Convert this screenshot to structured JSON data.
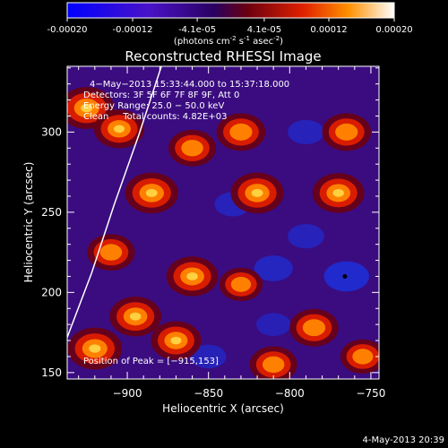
{
  "colorbar": {
    "ticks": [
      "-0.00020",
      "-0.00012",
      "-4.1e-05",
      "4.1e-05",
      "0.00012",
      "0.00020"
    ],
    "tick_values": [
      -0.0002,
      -0.00012,
      -4.1e-05,
      4.1e-05,
      0.00012,
      0.0002
    ],
    "range": [
      -0.0002,
      0.0002
    ],
    "unit_prefix": "(photons cm",
    "unit_exp1": "-2",
    "unit_mid1": " s",
    "unit_exp2": "-1",
    "unit_mid2": " asec",
    "unit_exp3": "-2",
    "unit_suffix": ")"
  },
  "chart_data": {
    "type": "heatmap",
    "title": "Reconstructed RHESSI Image",
    "xlabel": "Heliocentric X (arcsec)",
    "ylabel": "Heliocentric Y (arcsec)",
    "xlim": [
      -937,
      -745
    ],
    "ylim": [
      146,
      341
    ],
    "x_ticks": [
      -900,
      -850,
      -800,
      -750
    ],
    "x_tick_labels": [
      "−900",
      "−850",
      "−800",
      "−750"
    ],
    "y_ticks": [
      150,
      200,
      250,
      300
    ],
    "y_tick_labels": [
      "150",
      "200",
      "250",
      "300"
    ],
    "annotations": [
      "4−May−2013 15:33:44.000 to 15:37:18.000",
      "Detectors: 3F 5F 6F 7F 8F 9F, Att 0",
      "Energy Range: 25.0 − 50.0 keV",
      "Clean     Total counts: 4.82E+03"
    ],
    "peak_label": "Position of Peak = [−915,153]",
    "peak": [
      -915,
      153
    ],
    "dark_dot": [
      -766,
      210
    ],
    "limb_curve": [
      [
        -937,
        172
      ],
      [
        -922,
        212
      ],
      [
        -908,
        255
      ],
      [
        -893,
        298
      ],
      [
        -879,
        341
      ]
    ],
    "hot_regions": [
      {
        "x": -925,
        "y": 315,
        "level": 0.95
      },
      {
        "x": -885,
        "y": 262,
        "level": 0.9
      },
      {
        "x": -905,
        "y": 302,
        "level": 0.8
      },
      {
        "x": -860,
        "y": 290,
        "level": 0.7
      },
      {
        "x": -830,
        "y": 300,
        "level": 0.75
      },
      {
        "x": -820,
        "y": 262,
        "level": 0.9
      },
      {
        "x": -860,
        "y": 210,
        "level": 0.85
      },
      {
        "x": -910,
        "y": 225,
        "level": 0.7
      },
      {
        "x": -895,
        "y": 185,
        "level": 0.85
      },
      {
        "x": -920,
        "y": 165,
        "level": 0.95
      },
      {
        "x": -870,
        "y": 170,
        "level": 0.8
      },
      {
        "x": -810,
        "y": 155,
        "level": 0.7
      },
      {
        "x": -770,
        "y": 262,
        "level": 0.85
      },
      {
        "x": -765,
        "y": 300,
        "level": 0.75
      },
      {
        "x": -785,
        "y": 178,
        "level": 0.75
      },
      {
        "x": -755,
        "y": 160,
        "level": 0.6
      },
      {
        "x": -830,
        "y": 205,
        "level": 0.55
      }
    ],
    "cold_regions": [
      {
        "x": -765,
        "y": 210,
        "level": 0.9
      },
      {
        "x": -810,
        "y": 215,
        "level": 0.6
      },
      {
        "x": -835,
        "y": 255,
        "level": 0.5
      },
      {
        "x": -790,
        "y": 300,
        "level": 0.5
      },
      {
        "x": -790,
        "y": 235,
        "level": 0.5
      },
      {
        "x": -850,
        "y": 160,
        "level": 0.45
      },
      {
        "x": -810,
        "y": 180,
        "level": 0.4
      }
    ]
  },
  "footer": {
    "timestamp": "4-May-2013 20:39"
  }
}
